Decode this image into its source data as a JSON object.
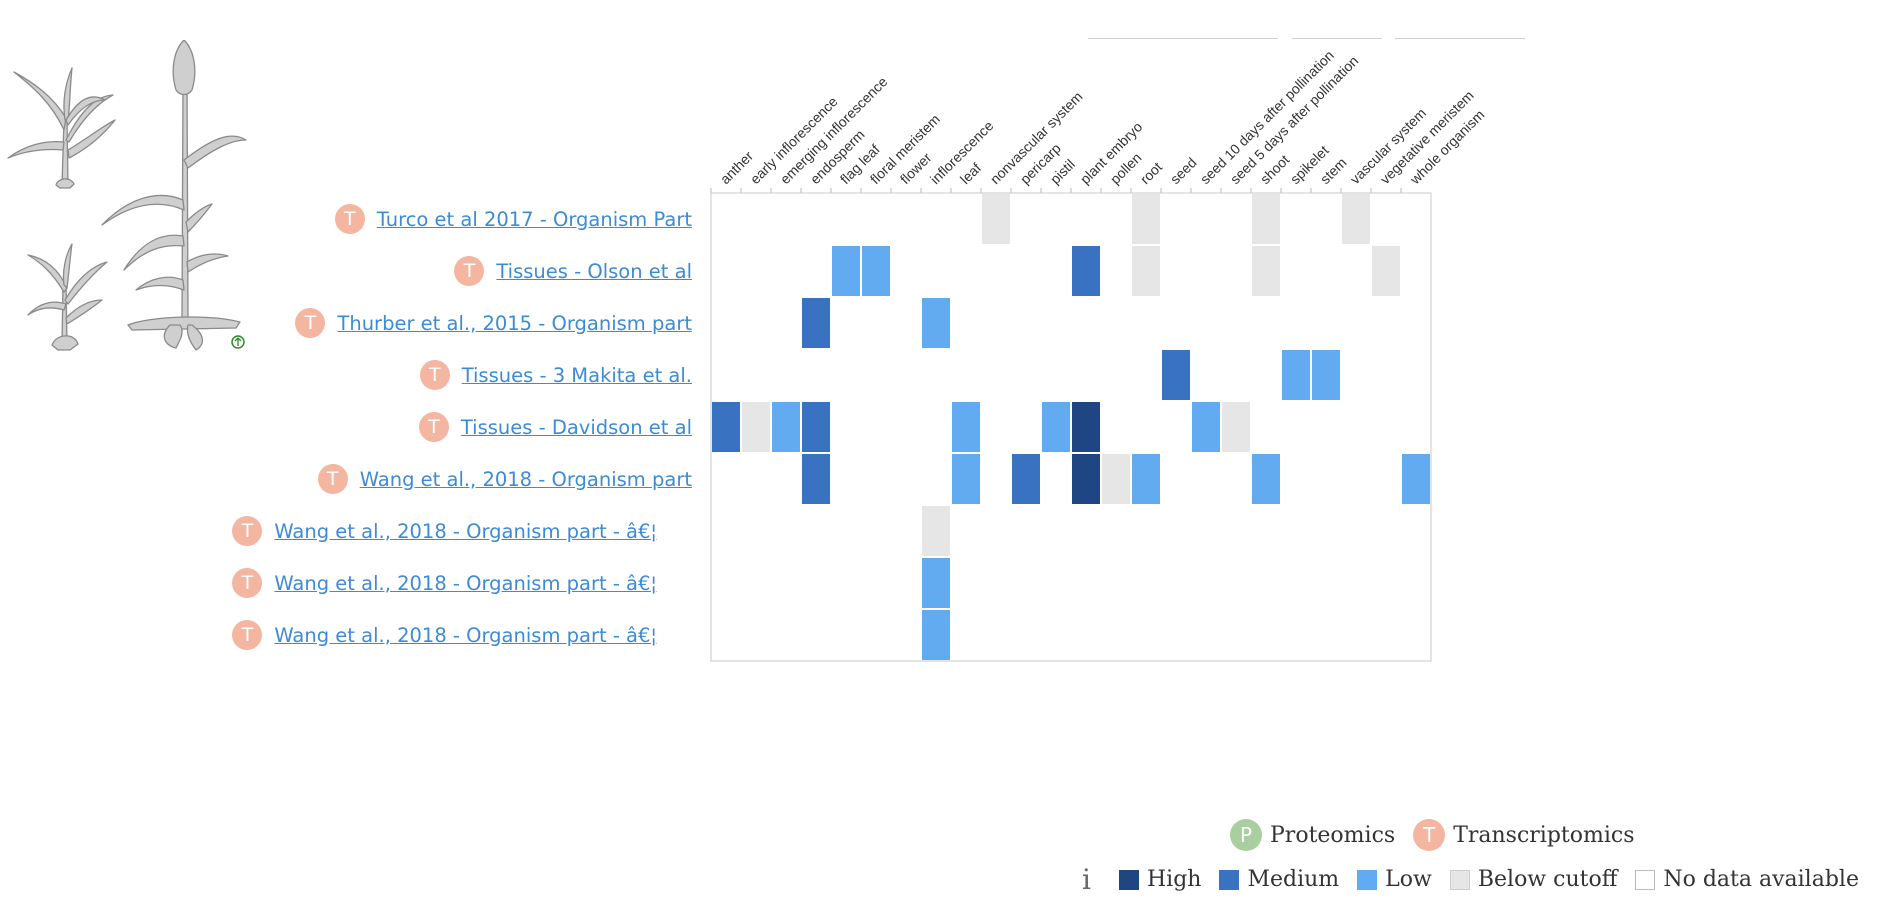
{
  "chart_data": {
    "type": "heatmap",
    "columns": [
      "anther",
      "early inflorescence",
      "emerging inflorescence",
      "endosperm",
      "flag leaf",
      "floral meristem",
      "flower",
      "inflorescence",
      "leaf",
      "nonvascular system",
      "pericarp",
      "pistil",
      "plant embryo",
      "pollen",
      "root",
      "seed",
      "seed 10 days after pollination",
      "seed 5 days after pollination",
      "shoot",
      "spikelet",
      "stem",
      "vascular system",
      "vegetative meristem",
      "whole organism"
    ],
    "rows": [
      {
        "label": "Turco et al 2017 - Organism Part",
        "type": "T",
        "cells": {
          "nonvascular system": "below",
          "root": "below",
          "shoot": "below",
          "vascular system": "below"
        }
      },
      {
        "label": "Tissues - Olson et al",
        "type": "T",
        "cells": {
          "flag leaf": "low",
          "floral meristem": "low",
          "plant embryo": "medium",
          "root": "below",
          "shoot": "below",
          "vegetative meristem": "below"
        }
      },
      {
        "label": "Thurber et al., 2015 - Organism part",
        "type": "T",
        "cells": {
          "endosperm": "medium",
          "inflorescence": "low"
        }
      },
      {
        "label": "Tissues - 3 Makita et al.",
        "type": "T",
        "cells": {
          "seed": "medium",
          "spikelet": "low",
          "stem": "low"
        }
      },
      {
        "label": "Tissues - Davidson et al",
        "type": "T",
        "cells": {
          "anther": "medium",
          "early inflorescence": "below",
          "emerging inflorescence": "low",
          "endosperm": "medium",
          "leaf": "low",
          "pistil": "low",
          "plant embryo": "high",
          "seed 10 days after pollination": "low",
          "seed 5 days after pollination": "below"
        }
      },
      {
        "label": "Wang et al., 2018 - Organism part",
        "type": "T",
        "cells": {
          "endosperm": "medium",
          "leaf": "low",
          "pericarp": "medium",
          "plant embryo": "high",
          "pollen": "below",
          "root": "low",
          "shoot": "low",
          "whole organism": "low"
        }
      },
      {
        "label": "Wang et al., 2018 - Organism part - â€¦",
        "type": "T",
        "cells": {
          "inflorescence": "below"
        }
      },
      {
        "label": "Wang et al., 2018 - Organism part - â€¦",
        "type": "T",
        "cells": {
          "inflorescence": "low"
        }
      },
      {
        "label": "Wang et al., 2018 - Organism part - â€¦",
        "type": "T",
        "cells": {
          "inflorescence": "low"
        }
      }
    ],
    "levels": [
      "high",
      "medium",
      "low",
      "below",
      "nodata"
    ]
  },
  "legend": {
    "experiment_types": [
      {
        "letter": "P",
        "label": "Proteomics"
      },
      {
        "letter": "T",
        "label": "Transcriptomics"
      }
    ],
    "info_glyph": "i",
    "levels": [
      {
        "key": "high",
        "label": "High",
        "color": "#1f4683"
      },
      {
        "key": "medium",
        "label": "Medium",
        "color": "#3a72c2"
      },
      {
        "key": "low",
        "label": "Low",
        "color": "#62abf0"
      },
      {
        "key": "below",
        "label": "Below cutoff",
        "color": "#e6e6e6"
      },
      {
        "key": "nodata",
        "label": "No data available",
        "color": "#ffffff"
      }
    ]
  },
  "colors": {
    "link": "#3d8ad6",
    "transcriptomics_badge": "#f4b6a1",
    "proteomics_badge": "#a9cfa0",
    "plant_info_icon": "#2e8b2e"
  },
  "icons": {
    "plant": "sorghum-plant-illustration",
    "plant_info": "info-circle-icon",
    "legend_info": "info-icon"
  }
}
